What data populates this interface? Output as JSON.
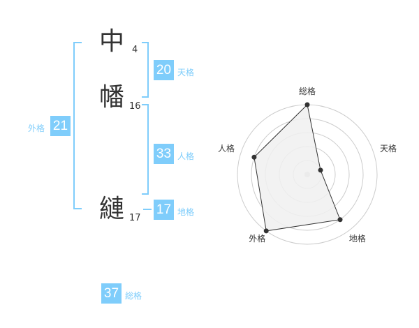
{
  "name": {
    "chars": [
      {
        "char": "中",
        "strokes": "4"
      },
      {
        "char": "幡",
        "strokes": "16"
      },
      {
        "char": "縺",
        "strokes": "17"
      }
    ]
  },
  "kakusu": {
    "tenkaku": {
      "label": "天格",
      "value": "20"
    },
    "jinkaku": {
      "label": "人格",
      "value": "33"
    },
    "chikaku": {
      "label": "地格",
      "value": "17"
    },
    "gaikaku": {
      "label": "外格",
      "value": "21"
    },
    "soukaku": {
      "label": "総格",
      "value": "37"
    }
  },
  "chart_data": {
    "type": "radar",
    "axes": [
      "総格",
      "天格",
      "地格",
      "外格",
      "人格"
    ],
    "values": [
      5,
      1,
      4,
      5,
      4
    ],
    "rmax": 5,
    "rings": 5,
    "colors": {
      "fill": "#f0f0f0",
      "line": "#333333",
      "grid": "#cccccc",
      "accent": "#7fcdfb"
    }
  }
}
